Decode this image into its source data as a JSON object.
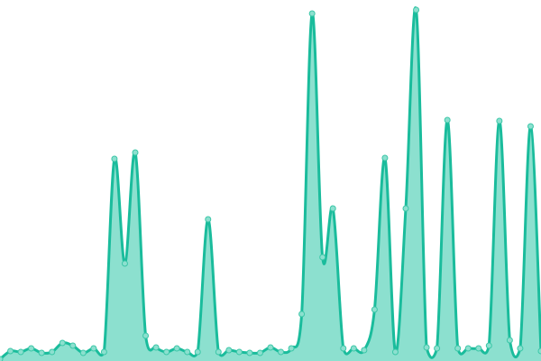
{
  "chart_data": {
    "type": "area",
    "title": "",
    "xlabel": "",
    "ylabel": "",
    "grid": false,
    "smooth": true,
    "show_points": true,
    "ylim": [
      0,
      400
    ],
    "x": [
      0,
      1,
      2,
      3,
      4,
      5,
      6,
      7,
      8,
      9,
      10,
      11,
      12,
      13,
      14,
      15,
      16,
      17,
      18,
      19,
      20,
      21,
      22,
      23,
      24,
      25,
      26,
      27,
      28,
      29,
      30,
      31,
      32,
      33,
      34,
      35,
      36,
      37,
      38,
      39,
      40,
      41,
      42,
      43,
      44,
      45,
      46,
      47,
      48,
      49,
      50,
      51,
      52
    ],
    "series": [
      {
        "values": [
          2,
          11,
          10,
          14,
          9,
          10,
          20,
          17,
          9,
          14,
          10,
          224,
          108,
          231,
          28,
          15,
          10,
          14,
          10,
          10,
          157,
          10,
          12,
          10,
          9,
          9,
          15,
          10,
          14,
          52,
          385,
          115,
          169,
          14,
          14,
          12,
          57,
          225,
          10,
          169,
          389,
          15,
          14,
          267,
          14,
          14,
          14,
          17,
          266,
          23,
          14,
          260,
          11
        ]
      }
    ],
    "colors": {
      "line": "#1abc9c",
      "fill": "#8ce0cf",
      "point_fill": "#8ce0cf",
      "point_stroke": "#3cc7a8"
    }
  }
}
